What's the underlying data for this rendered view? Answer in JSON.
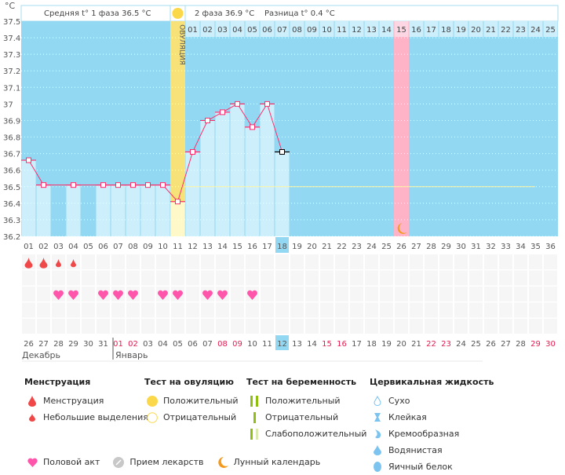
{
  "unit": "°C",
  "header": {
    "phase1": "Средняя t° 1 фаза 36.5 °C",
    "phase2": "2 фаза 36.9 °C",
    "diff": "Разница t° 0.4 °C"
  },
  "ovulation_label": "ОВУЛЯЦИЯ",
  "y_ticks": [
    "37.5",
    "37.4",
    "37.3",
    "37.2",
    "37.1",
    "37",
    "36.9",
    "36.8",
    "36.7",
    "36.6",
    "36.5",
    "36.4",
    "36.3",
    "36.2"
  ],
  "next_cycle_days": [
    "01",
    "02",
    "03",
    "04",
    "05",
    "06",
    "07",
    "08",
    "09",
    "10",
    "11",
    "12",
    "13",
    "14",
    "15",
    "16",
    "17",
    "18",
    "19",
    "20",
    "21",
    "22",
    "23",
    "24",
    "25"
  ],
  "cycle_days": [
    "01",
    "02",
    "03",
    "04",
    "05",
    "06",
    "07",
    "08",
    "09",
    "10",
    "11",
    "12",
    "13",
    "14",
    "15",
    "16",
    "17",
    "18",
    "19",
    "20",
    "21",
    "22",
    "23",
    "24",
    "25",
    "26",
    "27",
    "28",
    "29",
    "30",
    "31",
    "32",
    "33",
    "34",
    "35",
    "36"
  ],
  "temps": [
    36.66,
    36.51,
    null,
    36.51,
    null,
    36.51,
    36.51,
    36.51,
    36.51,
    36.51,
    36.41,
    36.71,
    36.9,
    36.95,
    37.0,
    36.86,
    37.0,
    36.71
  ],
  "coverline": 36.5,
  "ovulation_day": 11,
  "today_day": 18,
  "next_cycle_start_day": 26,
  "moon_day": 26,
  "menstruation": {
    "heavy": [
      1,
      2
    ],
    "light": [
      3,
      4
    ]
  },
  "intercourse_days": [
    3,
    4,
    6,
    7,
    8,
    10,
    11,
    13,
    14,
    16
  ],
  "dates": [
    "26",
    "27",
    "28",
    "29",
    "30",
    "31",
    "01",
    "02",
    "03",
    "04",
    "05",
    "06",
    "07",
    "08",
    "09",
    "10",
    "11",
    "12",
    "13",
    "14",
    "15",
    "16",
    "17",
    "18",
    "19",
    "20",
    "21",
    "22",
    "23",
    "24",
    "25",
    "26",
    "27",
    "28",
    "29",
    "30"
  ],
  "weekend_dates_idx": [
    6,
    7,
    13,
    14,
    20,
    21,
    27,
    28,
    34,
    35
  ],
  "months": [
    "Декабрь",
    "Январь"
  ],
  "colors": {
    "bg": "#93d8f2",
    "bar": "#cdeefb",
    "ovulation": "#f7e27a",
    "next": "#ffb3c7",
    "line": "#ff2d6b",
    "heart": "#ff55aa",
    "drop": "#f04848"
  },
  "legend": {
    "menstruation": {
      "title": "Менструация",
      "items": [
        "Менструация",
        "Небольшие выделения"
      ]
    },
    "ovulation_test": {
      "title": "Тест на овуляцию",
      "items": [
        "Положительный",
        "Отрицательный"
      ]
    },
    "pregnancy_test": {
      "title": "Тест на беременность",
      "items": [
        "Положительный",
        "Отрицательный",
        "Слабоположительный"
      ]
    },
    "cervical": {
      "title": "Цервикальная жидкость",
      "items": [
        "Сухо",
        "Клейкая",
        "Кремообразная",
        "Водянистая",
        "Яичный белок"
      ]
    },
    "other": [
      "Половой акт",
      "Прием лекарств",
      "Лунный календарь"
    ]
  }
}
